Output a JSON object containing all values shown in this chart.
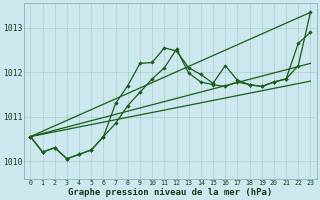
{
  "xlabel": "Graphe pression niveau de la mer (hPa)",
  "background_color": "#cce8ee",
  "grid_color": "#aacccc",
  "line_color": "#1a5c1a",
  "xlim": [
    -0.5,
    23.5
  ],
  "ylim": [
    1009.6,
    1013.55
  ],
  "yticks": [
    1010,
    1011,
    1012,
    1013
  ],
  "xticks": [
    0,
    1,
    2,
    3,
    4,
    5,
    6,
    7,
    8,
    9,
    10,
    11,
    12,
    13,
    14,
    15,
    16,
    17,
    18,
    19,
    20,
    21,
    22,
    23
  ],
  "series1_x": [
    0,
    1,
    2,
    3,
    4,
    5,
    6,
    7,
    8,
    9,
    10,
    11,
    12,
    13,
    14,
    15,
    16,
    17,
    18,
    19,
    20,
    21,
    22,
    23
  ],
  "series1_y": [
    1010.55,
    1010.2,
    1010.3,
    1010.05,
    1010.15,
    1010.25,
    1010.55,
    1011.3,
    1011.7,
    1012.2,
    1012.22,
    1012.55,
    1012.48,
    1012.1,
    1011.95,
    1011.75,
    1012.15,
    1011.82,
    1011.72,
    1011.68,
    1011.78,
    1011.85,
    1012.65,
    1012.9
  ],
  "series2_x": [
    0,
    1,
    2,
    3,
    4,
    5,
    6,
    7,
    8,
    9,
    10,
    11,
    12,
    13,
    14,
    15,
    16,
    17,
    18,
    19,
    20,
    21,
    22,
    23
  ],
  "series2_y": [
    1010.55,
    1010.2,
    1010.3,
    1010.05,
    1010.15,
    1010.25,
    1010.55,
    1010.85,
    1011.25,
    1011.55,
    1011.85,
    1012.1,
    1012.52,
    1011.98,
    1011.78,
    1011.72,
    1011.68,
    1011.78,
    1011.72,
    1011.68,
    1011.78,
    1011.85,
    1012.15,
    1013.35
  ],
  "series3_x": [
    0,
    23
  ],
  "series3_y": [
    1010.55,
    1013.35
  ],
  "series4_x": [
    0,
    23
  ],
  "series4_y": [
    1010.55,
    1011.8
  ],
  "series5_x": [
    0,
    23
  ],
  "series5_y": [
    1010.55,
    1012.2
  ]
}
